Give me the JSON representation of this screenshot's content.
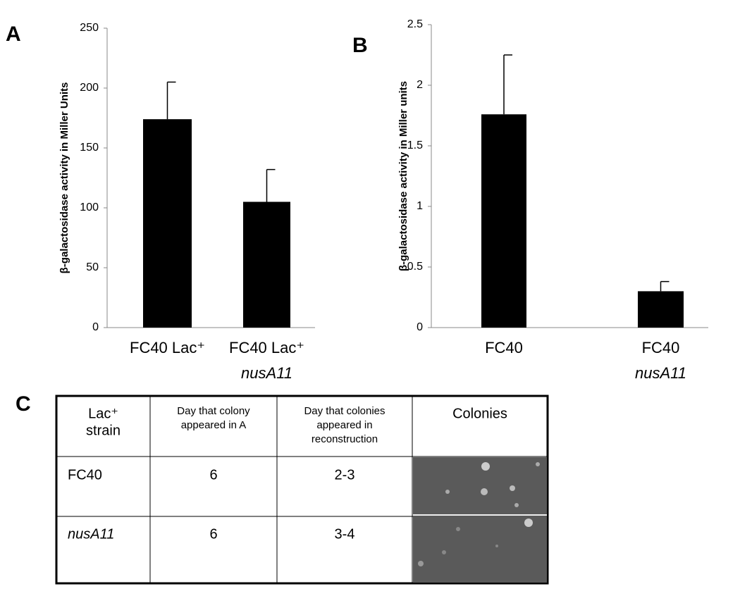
{
  "panels": [
    "A",
    "B",
    "C"
  ],
  "chart_data": [
    {
      "type": "bar",
      "y_label": "β-galactosidase activity in Miller Units",
      "categories": [
        [
          "FC40 Lac⁺"
        ],
        [
          "FC40 Lac⁺",
          "nusA11"
        ]
      ],
      "values": [
        174,
        105
      ],
      "errors": [
        31,
        27
      ],
      "color": "#000000",
      "ylim": [
        0,
        250
      ],
      "yticks": [
        0,
        50,
        100,
        150,
        200,
        250
      ]
    },
    {
      "type": "bar",
      "y_label": "β-galactosidase activity in Miller units",
      "categories": [
        [
          "FC40"
        ],
        [
          "FC40",
          "nusA11"
        ]
      ],
      "values": [
        1.76,
        0.3
      ],
      "errors": [
        0.49,
        0.08
      ],
      "color": "#000000",
      "ylim": [
        0,
        2.5
      ],
      "yticks": [
        0,
        0.5,
        1,
        1.5,
        2,
        2.5
      ]
    }
  ],
  "table": {
    "header": [
      [
        "Lac⁺",
        "strain"
      ],
      [
        "Day that colony",
        "appeared in A"
      ],
      [
        "Day that colonies",
        "appeared in",
        "reconstruction"
      ],
      [
        "Colonies"
      ]
    ],
    "rows": [
      [
        "FC40",
        "6",
        "2-3"
      ],
      [
        "nusA11",
        "6",
        "3-4"
      ]
    ]
  }
}
